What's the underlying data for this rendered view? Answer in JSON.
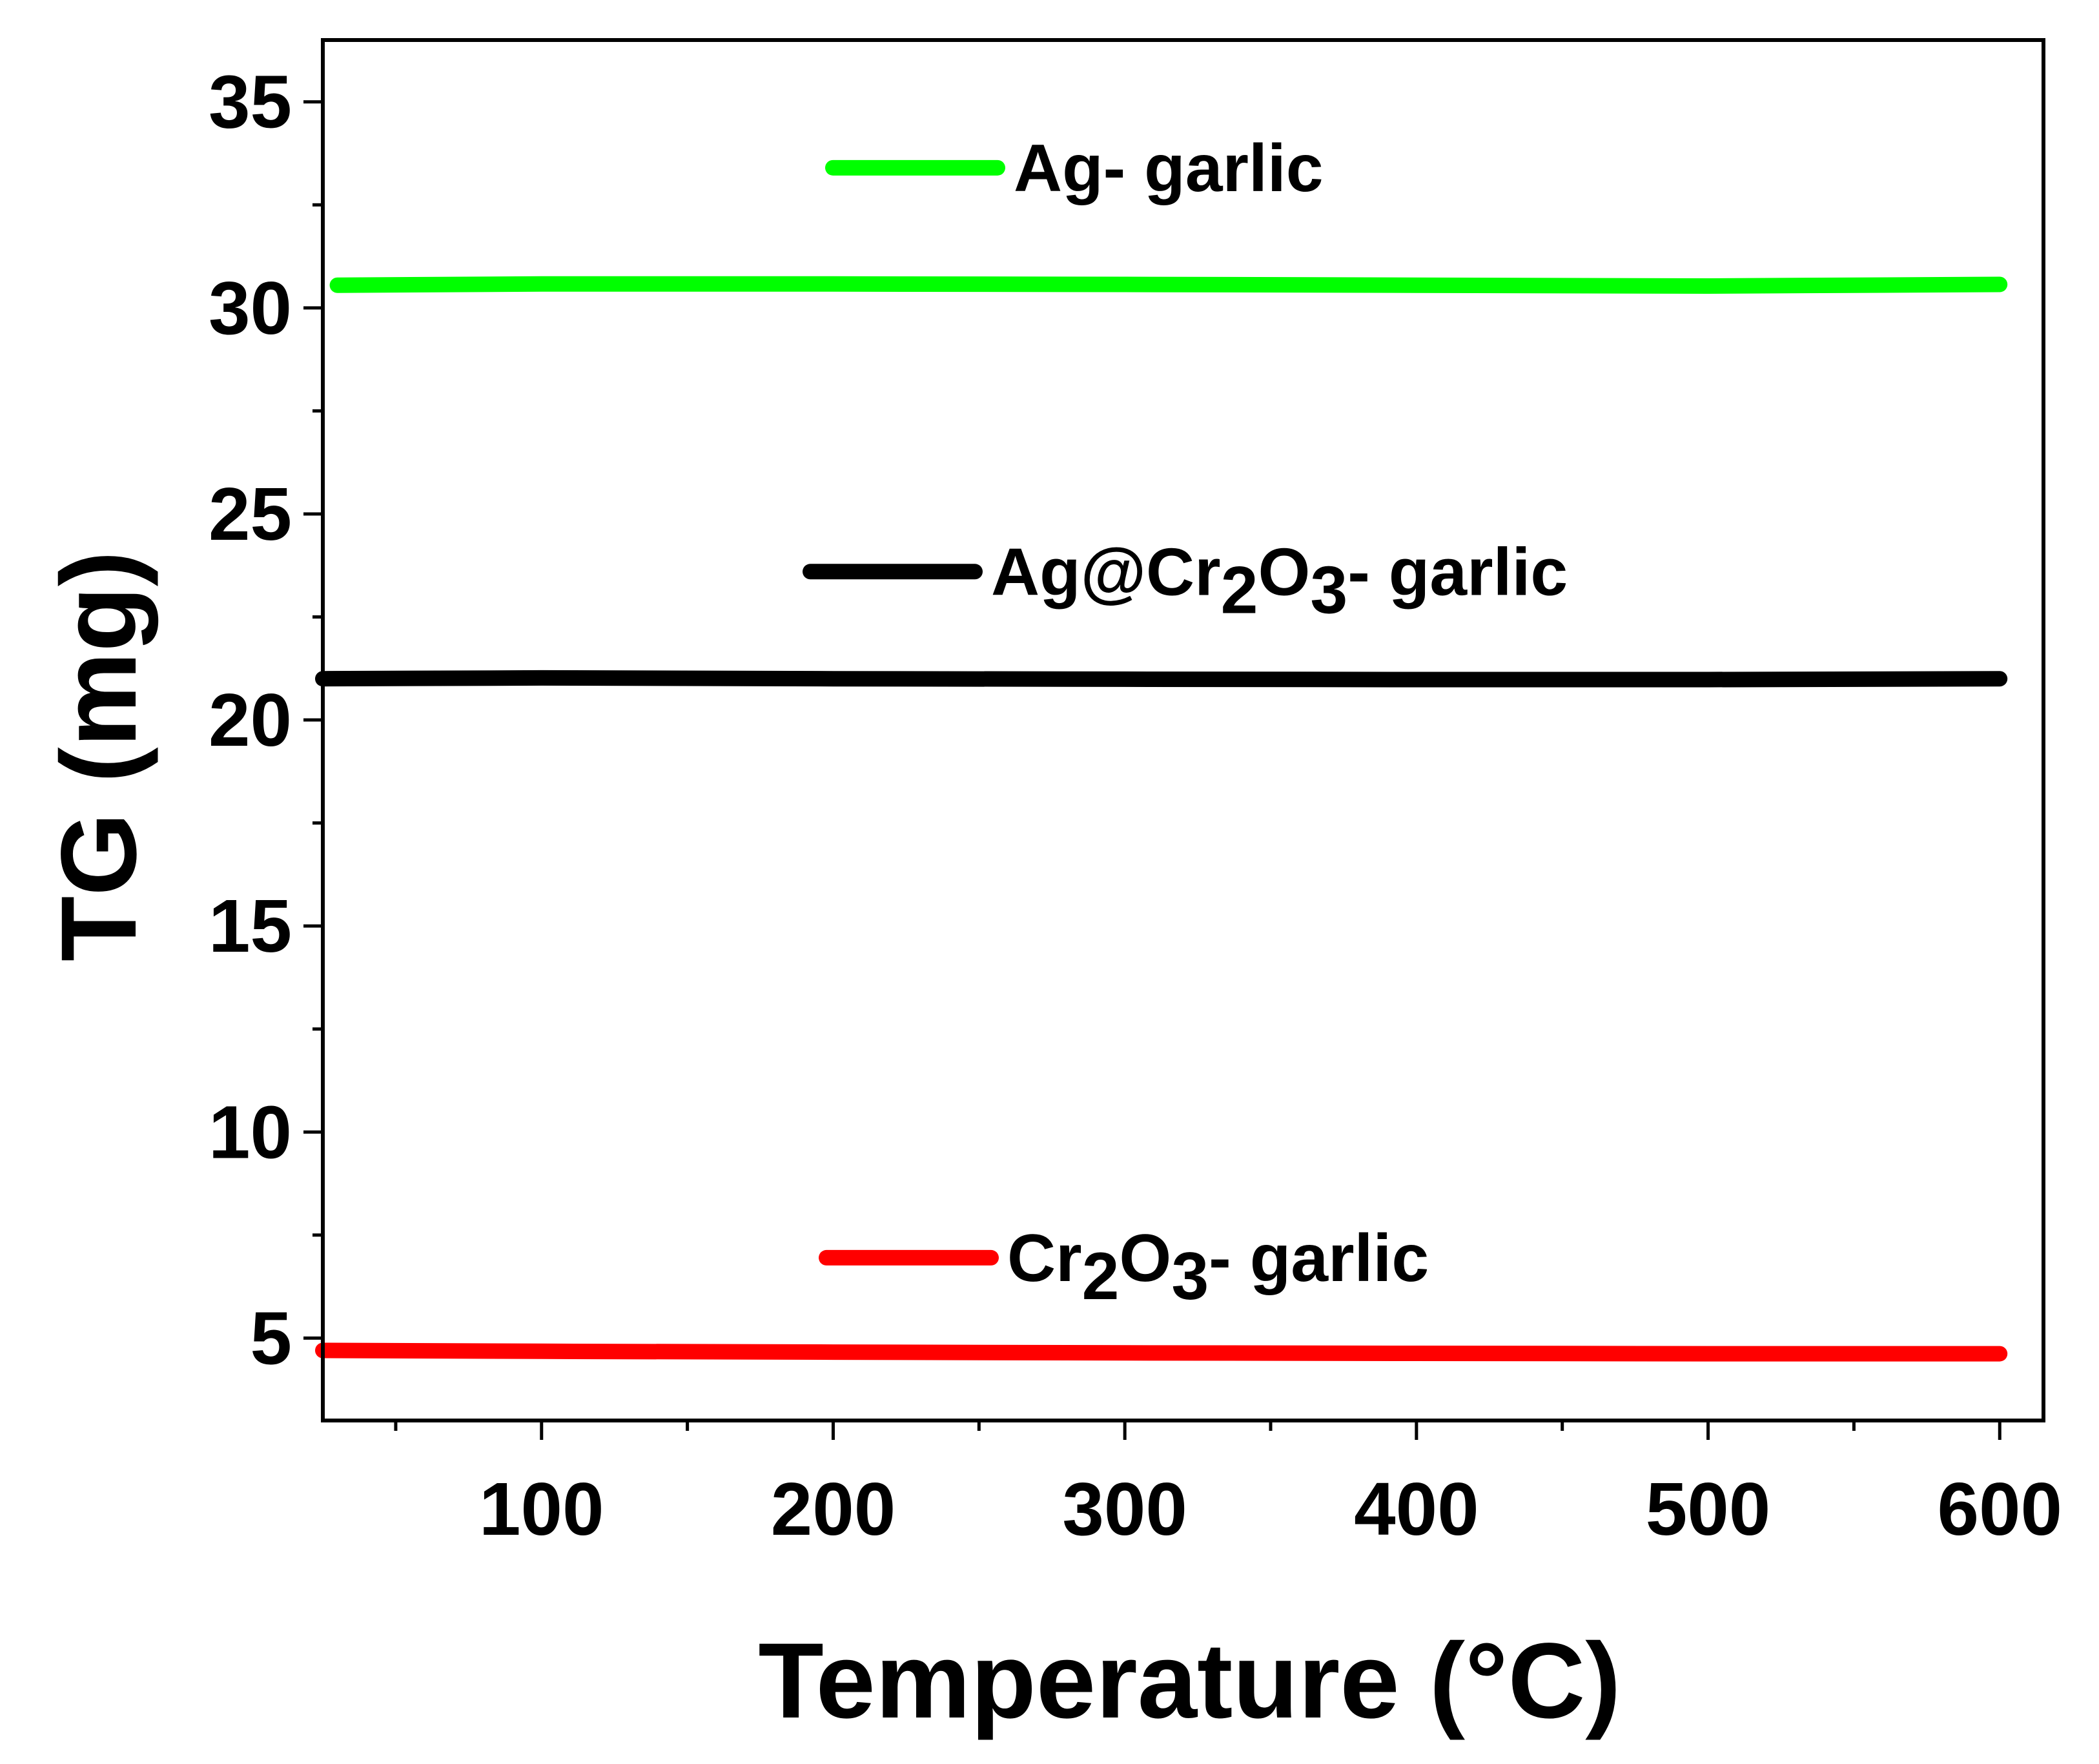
{
  "chart_data": {
    "type": "line",
    "xlabel": "Temperature (°C)",
    "ylabel": "TG (mg)",
    "xlim": [
      25,
      615
    ],
    "ylim": [
      3,
      36.5
    ],
    "x_major_ticks": [
      100,
      200,
      300,
      400,
      500,
      600
    ],
    "x_minor_ticks": [
      50,
      150,
      250,
      350,
      450,
      550
    ],
    "y_major_ticks": [
      5,
      10,
      15,
      20,
      25,
      30,
      35
    ],
    "y_minor_ticks": [
      7.5,
      12.5,
      17.5,
      22.5,
      27.5,
      32.5
    ],
    "grid": false,
    "legend_placement": "inline labels",
    "series": [
      {
        "name_parts": [
          {
            "t": "Ag- garlic",
            "sub": false
          }
        ],
        "color": "#00ff00",
        "x": [
          30,
          100,
          200,
          300,
          400,
          500,
          600
        ],
        "y": [
          30.55,
          30.58,
          30.58,
          30.57,
          30.55,
          30.53,
          30.57
        ],
        "legend_y": 33.4
      },
      {
        "name_parts": [
          {
            "t": "Ag@Cr",
            "sub": false
          },
          {
            "t": "2",
            "sub": true
          },
          {
            "t": "O",
            "sub": false
          },
          {
            "t": "3",
            "sub": true
          },
          {
            "t": "- garlic",
            "sub": false
          }
        ],
        "color": "#000000",
        "x": [
          25,
          100,
          200,
          300,
          400,
          500,
          600
        ],
        "y": [
          21.0,
          21.02,
          21.0,
          20.99,
          20.98,
          20.98,
          21.0
        ],
        "legend_y": 23.6
      },
      {
        "name_parts": [
          {
            "t": "Cr",
            "sub": false
          },
          {
            "t": "2",
            "sub": true
          },
          {
            "t": "O",
            "sub": false
          },
          {
            "t": "3",
            "sub": true
          },
          {
            "t": "- garlic",
            "sub": false
          }
        ],
        "color": "#ff0000",
        "x": [
          25,
          100,
          200,
          300,
          400,
          500,
          600
        ],
        "y": [
          4.7,
          4.68,
          4.66,
          4.64,
          4.63,
          4.62,
          4.62
        ],
        "legend_y": 6.95
      }
    ]
  }
}
